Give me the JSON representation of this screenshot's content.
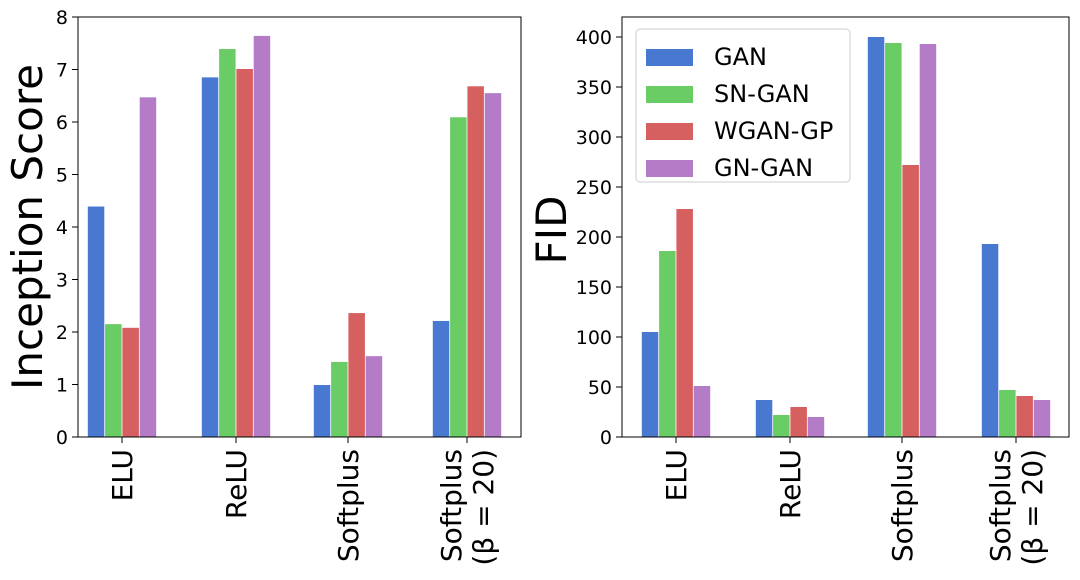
{
  "colors": {
    "GAN": "#4878cf",
    "SN-GAN": "#6acc65",
    "WGAN-GP": "#d65f5f",
    "GN-GAN": "#b47cc7"
  },
  "chart_data": [
    {
      "type": "bar",
      "title": "",
      "xlabel": "",
      "ylabel": "Inception Score",
      "ylim": [
        0,
        8
      ],
      "yticks": [
        0,
        1,
        2,
        3,
        4,
        5,
        6,
        7,
        8
      ],
      "categories": [
        {
          "line1": "ELU",
          "line2": ""
        },
        {
          "line1": "ReLU",
          "line2": ""
        },
        {
          "line1": "Softplus",
          "line2": ""
        },
        {
          "line1": "Softplus",
          "line2": "(β = 20)"
        }
      ],
      "series": [
        {
          "name": "GAN",
          "values": [
            4.39,
            6.85,
            0.99,
            2.21
          ]
        },
        {
          "name": "SN-GAN",
          "values": [
            2.15,
            7.39,
            1.43,
            6.09
          ]
        },
        {
          "name": "WGAN-GP",
          "values": [
            2.08,
            7.01,
            2.36,
            6.68
          ]
        },
        {
          "name": "GN-GAN",
          "values": [
            6.47,
            7.64,
            1.54,
            6.55
          ]
        }
      ],
      "legend": false
    },
    {
      "type": "bar",
      "title": "",
      "xlabel": "",
      "ylabel": "FID",
      "ylim": [
        0,
        420
      ],
      "yticks": [
        0,
        50,
        100,
        150,
        200,
        250,
        300,
        350,
        400
      ],
      "categories": [
        {
          "line1": "ELU",
          "line2": ""
        },
        {
          "line1": "ReLU",
          "line2": ""
        },
        {
          "line1": "Softplus",
          "line2": ""
        },
        {
          "line1": "Softplus",
          "line2": "(β = 20)"
        }
      ],
      "series": [
        {
          "name": "GAN",
          "values": [
            105,
            37,
            400,
            193
          ]
        },
        {
          "name": "SN-GAN",
          "values": [
            186,
            22,
            394,
            47
          ]
        },
        {
          "name": "WGAN-GP",
          "values": [
            228,
            30,
            272,
            41
          ]
        },
        {
          "name": "GN-GAN",
          "values": [
            51,
            20,
            393,
            37
          ]
        }
      ],
      "legend": true,
      "legend_position": "top-left"
    }
  ]
}
